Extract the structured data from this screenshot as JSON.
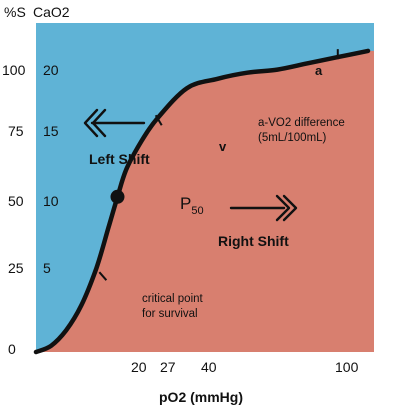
{
  "chart_data": {
    "type": "line",
    "title": "",
    "xlabel": "pO2 (mmHg)",
    "y_headers": [
      "%S",
      "CaO2"
    ],
    "x_ticks": [
      "20",
      "27",
      "40",
      "100"
    ],
    "y_ticks_saturation": [
      "0",
      "25",
      "50",
      "75",
      "100"
    ],
    "y_ticks_cao2": [
      "5",
      "10",
      "15",
      "20"
    ],
    "xlim": [
      0,
      112
    ],
    "ylim": [
      0,
      106
    ],
    "series": [
      {
        "x": [
          0,
          5,
          10,
          15,
          20,
          24,
          27,
          30,
          35,
          40,
          50,
          60,
          70,
          80,
          90,
          100,
          110
        ],
        "y": [
          0,
          2,
          7,
          15,
          27,
          40,
          50,
          59,
          68,
          75,
          85,
          88,
          90,
          91,
          93,
          95,
          97
        ]
      }
    ],
    "regions": {
      "left_shift_color": "#5fb3d6",
      "right_shift_color": "#d87f6f",
      "curve_color": "#111111"
    },
    "points": [
      {
        "label": "a",
        "x": 100,
        "y": 95
      },
      {
        "label": "v",
        "x": 40,
        "y": 75
      },
      {
        "label": "P",
        "label_sub": "50",
        "x": 27,
        "y": 50
      }
    ],
    "annotations": {
      "left_shift": "Left Shift",
      "right_shift": "Right Shift",
      "avo2_line1": "a-VO2 difference",
      "avo2_line2": "(5mL/100mL)",
      "critical_line1": "critical point",
      "critical_line2": "for survival"
    }
  }
}
